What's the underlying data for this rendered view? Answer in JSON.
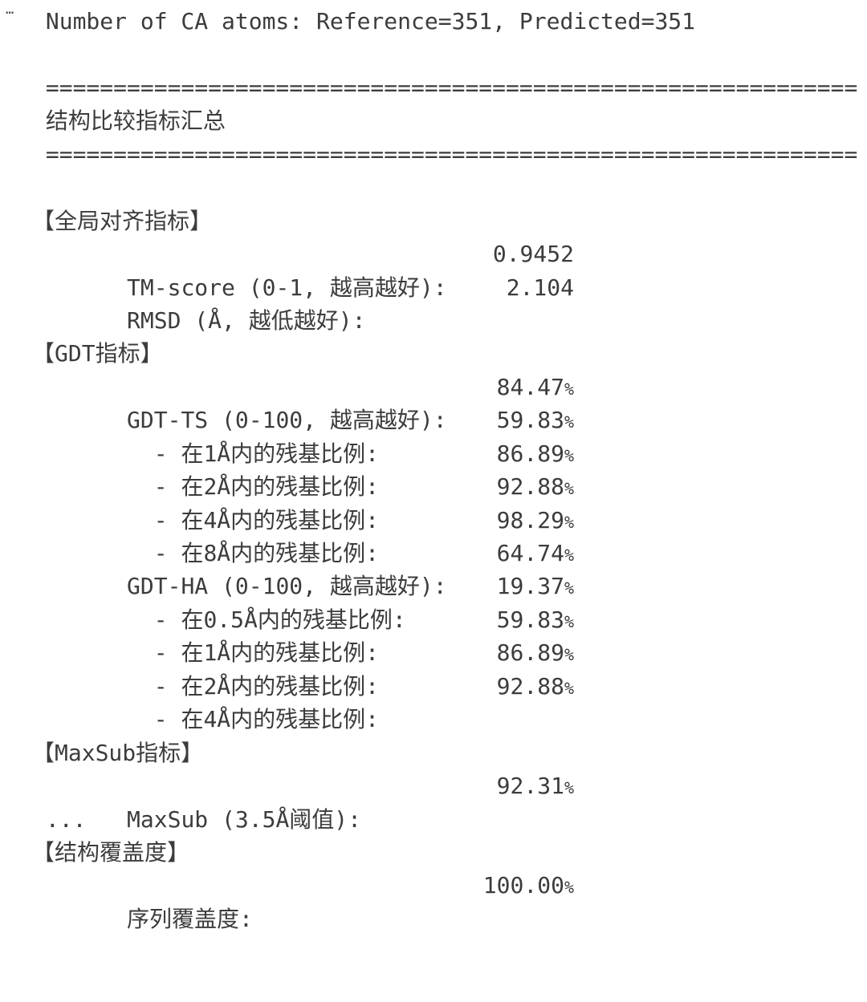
{
  "theme": {
    "background": "#ffffff",
    "text_color": "#3c3c3c"
  },
  "ui": {
    "collapsed_output_indicator": "…"
  },
  "console": {
    "atoms_line": " Number of CA atoms: Reference=351, Predicted=351",
    "divider": " ============================================================",
    "summary_title": " 结构比较指标汇总",
    "truncation_marker": " ...",
    "sections": [
      {
        "heading": "【全局对齐指标】",
        "rows": [
          {
            "label": "   TM-score (0-1, 越高越好):",
            "value": "0.9452"
          },
          {
            "label": "   RMSD (Å, 越低越好):",
            "value": "2.104"
          }
        ]
      },
      {
        "heading": "【GDT指标】",
        "rows": [
          {
            "label": "   GDT-TS (0-100, 越高越好):",
            "value": "84.47%"
          },
          {
            "label": "     - 在1Å内的残基比例:",
            "value": "59.83%"
          },
          {
            "label": "     - 在2Å内的残基比例:",
            "value": "86.89%"
          },
          {
            "label": "     - 在4Å内的残基比例:",
            "value": "92.88%"
          },
          {
            "label": "     - 在8Å内的残基比例:",
            "value": "98.29%"
          },
          {
            "label": "   GDT-HA (0-100, 越高越好):",
            "value": "64.74%"
          },
          {
            "label": "     - 在0.5Å内的残基比例:",
            "value": "19.37%"
          },
          {
            "label": "     - 在1Å内的残基比例:",
            "value": "59.83%"
          },
          {
            "label": "     - 在2Å内的残基比例:",
            "value": "86.89%"
          },
          {
            "label": "     - 在4Å内的残基比例:",
            "value": "92.88%"
          }
        ]
      },
      {
        "heading": "【MaxSub指标】",
        "rows": [
          {
            "label": "   MaxSub (3.5Å阈值):",
            "value": "92.31%"
          }
        ]
      },
      {
        "heading": "【结构覆盖度】",
        "rows": [
          {
            "label": "   序列覆盖度:",
            "value": "100.00%"
          }
        ]
      }
    ]
  }
}
